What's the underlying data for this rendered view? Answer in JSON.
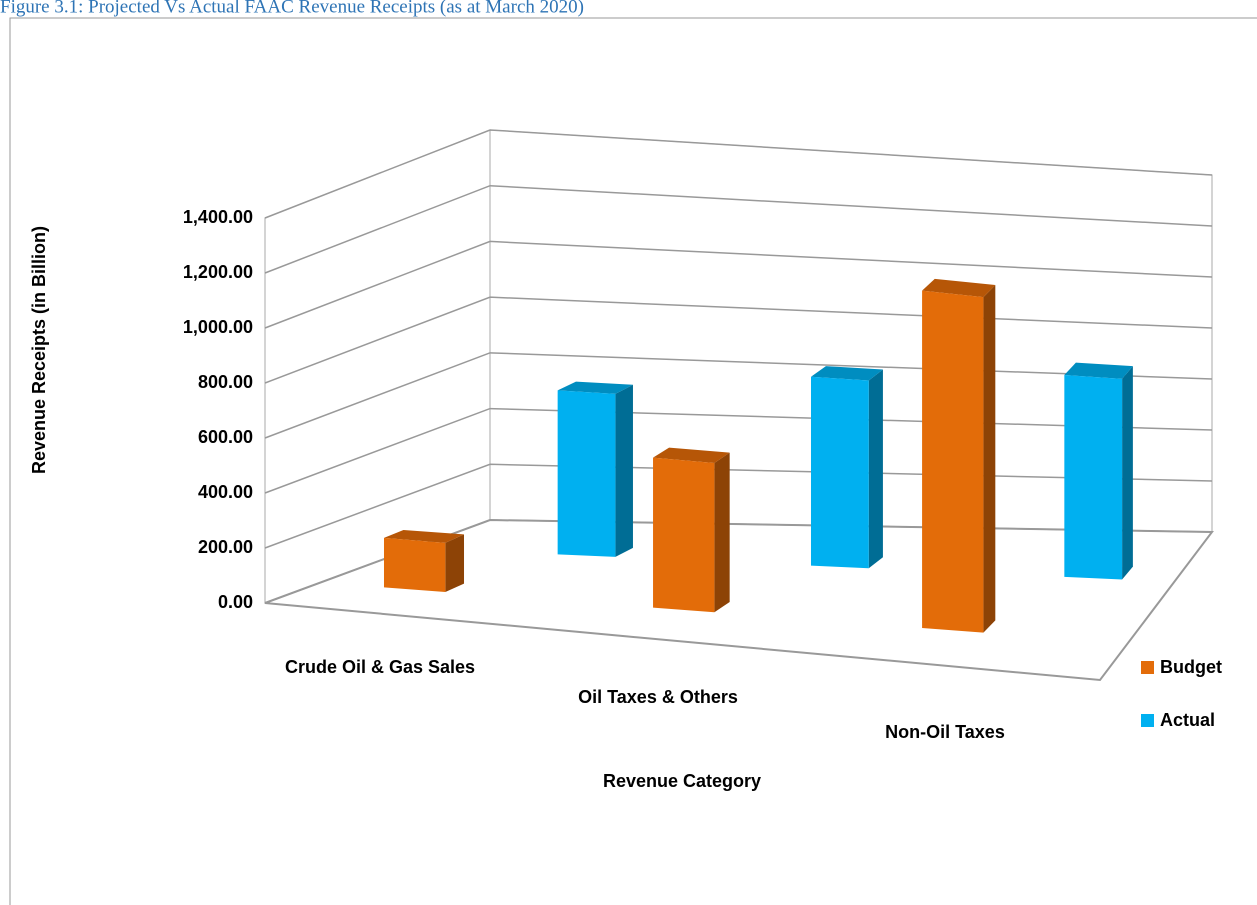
{
  "chart_data": {
    "type": "bar3d",
    "title": "Figure 3.1: Projected Vs Actual FAAC Revenue Receipts (as at March 2020)",
    "x_label": "Revenue Category",
    "y_label": "Revenue Receipts (in Billion)",
    "categories": [
      "Crude Oil & Gas Sales",
      "Oil Taxes & Others",
      "Non-Oil Taxes"
    ],
    "series": [
      {
        "name": "Budget",
        "color": "#e36c09",
        "values": [
          180,
          560,
          1290
        ]
      },
      {
        "name": "Actual",
        "color": "#00b0f0",
        "values": [
          600,
          710,
          780
        ]
      }
    ],
    "ylim": [
      0,
      1400
    ],
    "yticks": [
      {
        "value": 0,
        "label": "0.00"
      },
      {
        "value": 200,
        "label": "200.00"
      },
      {
        "value": 400,
        "label": "400.00"
      },
      {
        "value": 600,
        "label": "600.00"
      },
      {
        "value": 800,
        "label": "800.00"
      },
      {
        "value": 1000,
        "label": "1,000.00"
      },
      {
        "value": 1200,
        "label": "1,200.00"
      },
      {
        "value": 1400,
        "label": "1,400.00"
      }
    ],
    "grid": true,
    "legend": "right"
  }
}
